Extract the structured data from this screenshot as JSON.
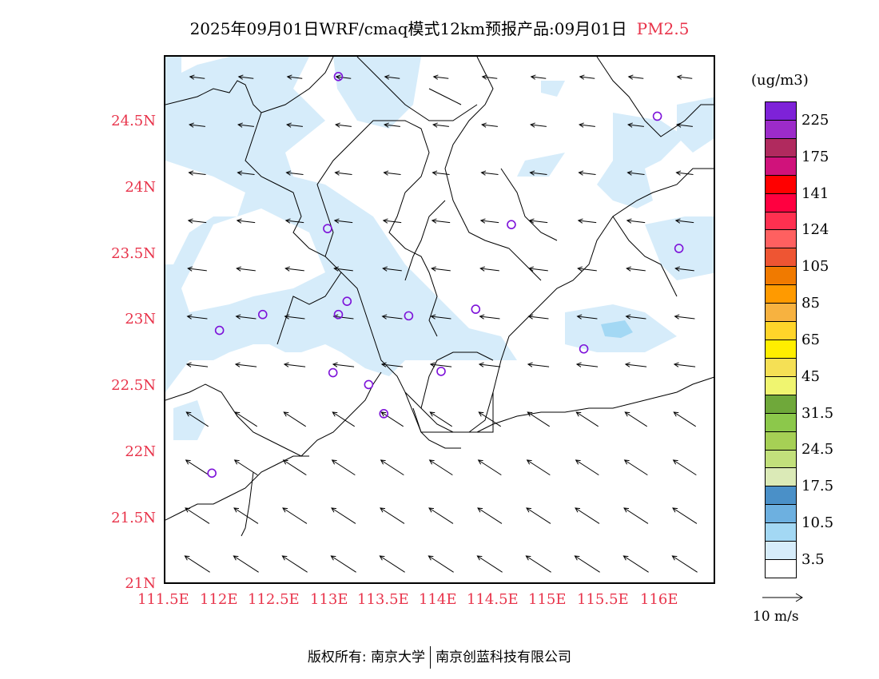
{
  "title": {
    "main": "2025年09月01日WRF/cmaq模式12km预报产品:09月01日",
    "pollutant": "PM2.5"
  },
  "map": {
    "lat_labels": [
      "24.5N",
      "24N",
      "23.5N",
      "23N",
      "22.5N",
      "22N",
      "21.5N",
      "21N"
    ],
    "lon_labels": [
      "111.5E",
      "112E",
      "112.5E",
      "113E",
      "113.5E",
      "114E",
      "114.5E",
      "115E",
      "115.5E",
      "116E"
    ],
    "lon_range": [
      111.5,
      116.6
    ],
    "lat_range": [
      21.0,
      25.0
    ],
    "colors": {
      "pm_light": "#d6ecfa",
      "pm_mid": "#a3d8f4",
      "station_ring": "#7d12d9",
      "label_red": "#e8334a"
    },
    "stations": [
      {
        "lon": 113.1,
        "lat": 24.85
      },
      {
        "lon": 116.05,
        "lat": 24.55
      },
      {
        "lon": 113.0,
        "lat": 23.7
      },
      {
        "lon": 114.7,
        "lat": 23.73
      },
      {
        "lon": 116.25,
        "lat": 23.55
      },
      {
        "lon": 112.4,
        "lat": 23.05
      },
      {
        "lon": 113.18,
        "lat": 23.15
      },
      {
        "lon": 113.1,
        "lat": 23.05
      },
      {
        "lon": 113.75,
        "lat": 23.04
      },
      {
        "lon": 114.37,
        "lat": 23.09
      },
      {
        "lon": 112.0,
        "lat": 22.93
      },
      {
        "lon": 115.37,
        "lat": 22.79
      },
      {
        "lon": 113.05,
        "lat": 22.61
      },
      {
        "lon": 113.38,
        "lat": 22.52
      },
      {
        "lon": 114.05,
        "lat": 22.62
      },
      {
        "lon": 113.52,
        "lat": 22.3
      },
      {
        "lon": 111.93,
        "lat": 21.85
      }
    ]
  },
  "colorbar": {
    "unit": "(ug/m3)",
    "cells": [
      "#ffffff",
      "#d6ecfa",
      "#a3d8f4",
      "#6db0e0",
      "#4a90c8",
      "#dbeab7",
      "#c2e07b",
      "#a6d055",
      "#8cc84b",
      "#6fa83a",
      "#f0f570",
      "#f5e055",
      "#ffee00",
      "#ffd52a",
      "#f7b240",
      "#ff9a00",
      "#f07a00",
      "#ee5533",
      "#ff6060",
      "#ff3050",
      "#ff0040",
      "#ff0000",
      "#d0127b",
      "#b02a5e",
      "#9c2bc9",
      "#7e22d8"
    ],
    "labels": [
      "3.5",
      "10.5",
      "17.5",
      "24.5",
      "31.5",
      "45",
      "65",
      "85",
      "105",
      "124",
      "141",
      "175",
      "225"
    ]
  },
  "wind_reference": {
    "label": "10 m/s"
  },
  "footer": {
    "copyright": "版权所有: 南京大学",
    "company": "南京创蓝科技有限公司"
  }
}
